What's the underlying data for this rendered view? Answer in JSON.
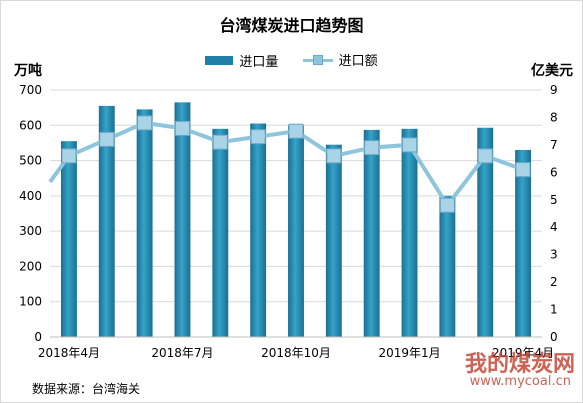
{
  "chart_data": {
    "type": "bar",
    "title": "台湾煤炭进口趋势图",
    "y_left_label": "万吨",
    "y_right_label": "亿美元",
    "ylim_left": [
      0,
      700
    ],
    "ylim_right": [
      0,
      9
    ],
    "yticks_left": [
      "0",
      "100",
      "200",
      "300",
      "400",
      "500",
      "600",
      "700"
    ],
    "yticks_right": [
      "0",
      "1",
      "2",
      "3",
      "4",
      "5",
      "6",
      "7",
      "8",
      "9"
    ],
    "x_labels": [
      "2018年4月",
      "2018年7月",
      "2018年10月",
      "2019年1月",
      "2019年4月"
    ],
    "x_label_positions": [
      0,
      3,
      6,
      9,
      12
    ],
    "categories": [
      "2018-04",
      "2018-05",
      "2018-06",
      "2018-07",
      "2018-08",
      "2018-09",
      "2018-10",
      "2018-11",
      "2018-12",
      "2019-01",
      "2019-02",
      "2019-03",
      "2019-04"
    ],
    "legend_position": "top",
    "series": [
      {
        "name": "进口量",
        "type": "bar",
        "axis": "left",
        "color": "#1f7fa6",
        "values": [
          555,
          655,
          645,
          665,
          590,
          605,
          600,
          545,
          587,
          590,
          400,
          593,
          530
        ]
      },
      {
        "name": "进口额",
        "type": "line",
        "axis": "right",
        "color": "#8ec4dc",
        "values": [
          6.6,
          7.2,
          7.8,
          7.6,
          7.1,
          7.3,
          7.5,
          6.6,
          6.9,
          7.0,
          4.8,
          6.6,
          6.1
        ]
      }
    ]
  },
  "source": "数据来源：台湾海关",
  "watermark": {
    "text": "我的煤炭网",
    "url": "www.mycoal.cn"
  }
}
